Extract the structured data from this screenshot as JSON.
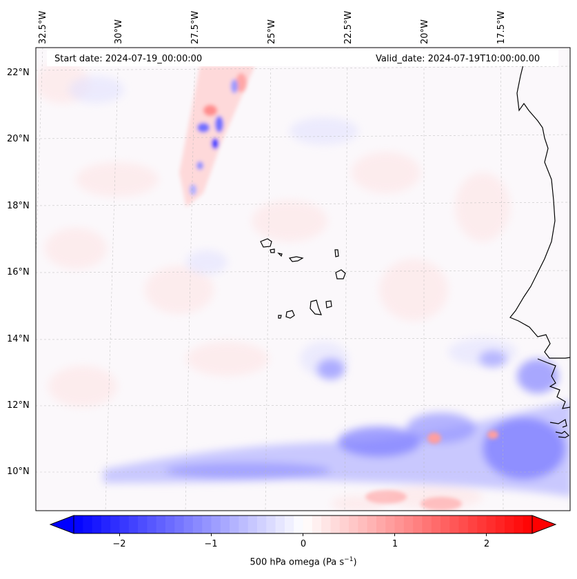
{
  "map": {
    "start_date": "Start date: 2024-07-19_00:00:00",
    "valid_date": "Valid_date: 2024-07-19T10:00:00.00",
    "longitude_labels": [
      "32.5°W",
      "30°W",
      "27.5°W",
      "25°W",
      "22.5°W",
      "20°W",
      "17.5°W"
    ],
    "latitude_labels": [
      "22°N",
      "20°N",
      "18°N",
      "16°N",
      "14°N",
      "12°N",
      "10°N"
    ],
    "field": "500 hPa omega",
    "features": [
      "cape-verde-islands",
      "west-africa-coastline"
    ]
  },
  "colorbar": {
    "label_prefix": "500 hPa omega (Pa s",
    "label_exponent": "−1",
    "label_suffix": ")",
    "ticks": [
      "−2",
      "−1",
      "0",
      "1",
      "2"
    ],
    "tick_values": [
      -2,
      -1,
      0,
      1,
      2
    ],
    "range": [
      -2.5,
      2.5
    ],
    "colors": {
      "negative": "#0000ff",
      "zero": "#ffffff",
      "positive": "#ff0000"
    }
  }
}
